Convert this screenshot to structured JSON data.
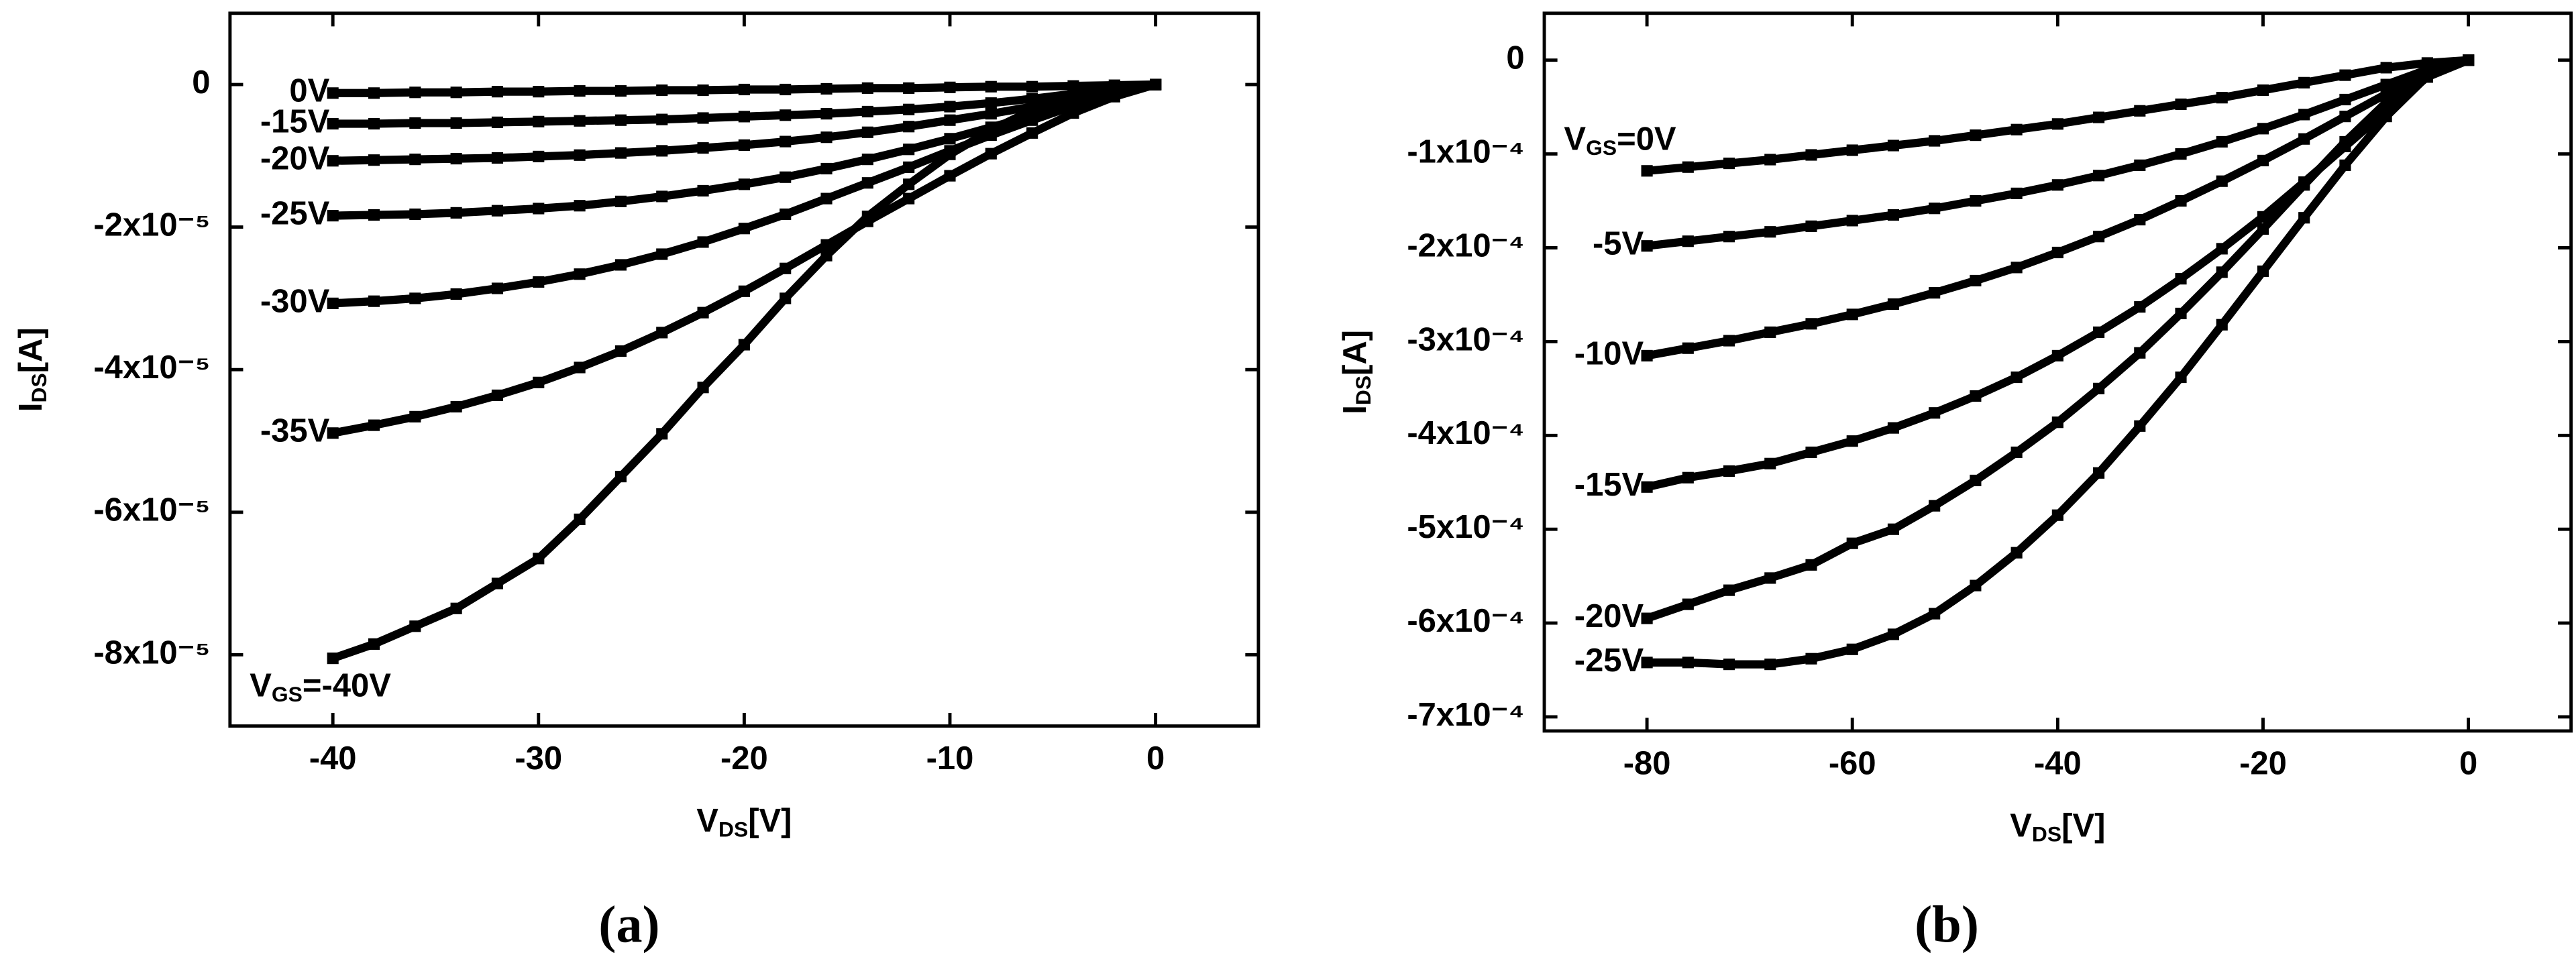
{
  "chart_data": [
    {
      "type": "line",
      "color": "#000000",
      "marker": "square",
      "x_label": {
        "main": "V",
        "sub": "DS",
        "unit": "[V]"
      },
      "y_label": {
        "main": "I",
        "sub": "DS",
        "unit": "[A]"
      },
      "caption": "(a)",
      "xlim": [
        -45,
        5
      ],
      "xticks": [
        -40,
        -30,
        -20,
        -10,
        0
      ],
      "ylim": [
        -9e-05,
        1e-05
      ],
      "yticks": [
        0,
        {
          "value": -2e-05,
          "label": "-2x10⁻⁵"
        },
        {
          "value": -4e-05,
          "label": "-4x10⁻⁵"
        },
        {
          "value": -6e-05,
          "label": "-6x10⁻⁵"
        },
        {
          "value": -8e-05,
          "label": "-8x10⁻⁵"
        }
      ],
      "x": [
        -40,
        -38,
        -36,
        -34,
        -32,
        -30,
        -28,
        -26,
        -24,
        -22,
        -20,
        -18,
        -16,
        -14,
        -12,
        -10,
        -8,
        -6,
        -4,
        -2,
        0
      ],
      "series": [
        {
          "name": "0V",
          "values": [
            -1.2e-06,
            -1.2e-06,
            -1.1e-06,
            -1.1e-06,
            -1e-06,
            -1e-06,
            -9e-07,
            -9e-07,
            -8e-07,
            -8e-07,
            -7e-07,
            -7e-07,
            -6e-07,
            -5e-07,
            -5e-07,
            -4e-07,
            -3e-07,
            -3e-07,
            -2e-07,
            -1e-07,
            0
          ]
        },
        {
          "name": "-15V",
          "values": [
            -5.5e-06,
            -5.5e-06,
            -5.4e-06,
            -5.4e-06,
            -5.3e-06,
            -5.2e-06,
            -5.1e-06,
            -5e-06,
            -4.9e-06,
            -4.7e-06,
            -4.5e-06,
            -4.3e-06,
            -4.1e-06,
            -3.8e-06,
            -3.5e-06,
            -3.1e-06,
            -2.6e-06,
            -2e-06,
            -1.3e-06,
            -6e-07,
            0
          ]
        },
        {
          "name": "-20V",
          "values": [
            -1.07e-05,
            -1.06e-05,
            -1.05e-05,
            -1.04e-05,
            -1.03e-05,
            -1.01e-05,
            -9.9e-06,
            -9.6e-06,
            -9.3e-06,
            -8.9e-06,
            -8.5e-06,
            -8e-06,
            -7.4e-06,
            -6.7e-06,
            -5.9e-06,
            -5e-06,
            -4.1e-06,
            -3.1e-06,
            -2e-06,
            -9e-07,
            0
          ]
        },
        {
          "name": "-25V",
          "values": [
            -1.84e-05,
            -1.83e-05,
            -1.82e-05,
            -1.8e-05,
            -1.77e-05,
            -1.74e-05,
            -1.7e-05,
            -1.64e-05,
            -1.57e-05,
            -1.49e-05,
            -1.4e-05,
            -1.3e-05,
            -1.18e-05,
            -1.05e-05,
            -9.1e-06,
            -7.6e-06,
            -6e-06,
            -4.4e-06,
            -2.8e-06,
            -1.2e-06,
            0
          ]
        },
        {
          "name": "-30V",
          "values": [
            -3.07e-05,
            -3.04e-05,
            -3e-05,
            -2.94e-05,
            -2.86e-05,
            -2.77e-05,
            -2.66e-05,
            -2.53e-05,
            -2.38e-05,
            -2.21e-05,
            -2.02e-05,
            -1.82e-05,
            -1.6e-05,
            -1.38e-05,
            -1.16e-05,
            -9.3e-06,
            -7.1e-06,
            -5e-06,
            -3e-06,
            -1.3e-06,
            0
          ]
        },
        {
          "name": "-35V",
          "values": [
            -4.89e-05,
            -4.78e-05,
            -4.66e-05,
            -4.52e-05,
            -4.36e-05,
            -4.18e-05,
            -3.97e-05,
            -3.74e-05,
            -3.48e-05,
            -3.2e-05,
            -2.9e-05,
            -2.58e-05,
            -2.25e-05,
            -1.92e-05,
            -1.6e-05,
            -1.28e-05,
            -9.7e-06,
            -6.8e-06,
            -4e-06,
            -1.7e-06,
            0
          ]
        },
        {
          "name": "-40V",
          "prefix": {
            "main": "V",
            "sub": "GS",
            "rel": "="
          },
          "values": [
            -8.05e-05,
            -7.85e-05,
            -7.6e-05,
            -7.35e-05,
            -7e-05,
            -6.65e-05,
            -6.1e-05,
            -5.5e-05,
            -4.9e-05,
            -4.25e-05,
            -3.65e-05,
            -3e-05,
            -2.4e-05,
            -1.85e-05,
            -1.4e-05,
            -9.8e-06,
            -6.4e-06,
            -3.6e-06,
            -1.6e-06,
            -5e-07,
            0
          ]
        }
      ]
    },
    {
      "type": "line",
      "color": "#000000",
      "marker": "square",
      "x_label": {
        "main": "V",
        "sub": "DS",
        "unit": "[V]"
      },
      "y_label": {
        "main": "I",
        "sub": "DS",
        "unit": "[A]"
      },
      "caption": "(b)",
      "xlim": [
        -90,
        10
      ],
      "xticks": [
        -80,
        -60,
        -40,
        -20,
        0
      ],
      "ylim": [
        -0.000715,
        5e-05
      ],
      "yticks": [
        0,
        {
          "value": -0.0001,
          "label": "-1x10⁻⁴"
        },
        {
          "value": -0.0002,
          "label": "-2x10⁻⁴"
        },
        {
          "value": -0.0003,
          "label": "-3x10⁻⁴"
        },
        {
          "value": -0.0004,
          "label": "-4x10⁻⁴"
        },
        {
          "value": -0.0005,
          "label": "-5x10⁻⁴"
        },
        {
          "value": -0.0006,
          "label": "-6x10⁻⁴"
        },
        {
          "value": -0.0007,
          "label": "-7x10⁻⁴"
        }
      ],
      "x": [
        -80,
        -76,
        -72,
        -68,
        -64,
        -60,
        -56,
        -52,
        -48,
        -44,
        -40,
        -36,
        -32,
        -28,
        -24,
        -20,
        -16,
        -12,
        -8,
        -4,
        0
      ],
      "series": [
        {
          "name": "0V",
          "prefix": {
            "main": "V",
            "sub": "GS",
            "rel": "="
          },
          "values": [
            -0.000118,
            -0.000114,
            -0.00011,
            -0.000106,
            -0.000101,
            -9.6e-05,
            -9.1e-05,
            -8.6e-05,
            -8e-05,
            -7.4e-05,
            -6.8e-05,
            -6.1e-05,
            -5.4e-05,
            -4.7e-05,
            -4e-05,
            -3.2e-05,
            -2.4e-05,
            -1.6e-05,
            -8e-06,
            -3e-06,
            0
          ]
        },
        {
          "name": "-5V",
          "values": [
            -0.000198,
            -0.000193,
            -0.000188,
            -0.000183,
            -0.000177,
            -0.000171,
            -0.000165,
            -0.000158,
            -0.00015,
            -0.000142,
            -0.000133,
            -0.000123,
            -0.000112,
            -0.0001,
            -8.7e-05,
            -7.3e-05,
            -5.8e-05,
            -4.2e-05,
            -2.6e-05,
            -1e-05,
            0
          ]
        },
        {
          "name": "-10V",
          "values": [
            -0.000315,
            -0.000307,
            -0.000299,
            -0.00029,
            -0.000281,
            -0.000271,
            -0.00026,
            -0.000248,
            -0.000235,
            -0.000221,
            -0.000205,
            -0.000188,
            -0.00017,
            -0.00015,
            -0.000129,
            -0.000107,
            -8.4e-05,
            -6e-05,
            -3.6e-05,
            -1.3e-05,
            0
          ]
        },
        {
          "name": "-15V",
          "values": [
            -0.000455,
            -0.000445,
            -0.000438,
            -0.00043,
            -0.000418,
            -0.000406,
            -0.000392,
            -0.000376,
            -0.000358,
            -0.000338,
            -0.000315,
            -0.00029,
            -0.000263,
            -0.000233,
            -0.000201,
            -0.000167,
            -0.00013,
            -9.2e-05,
            -5.4e-05,
            -1.8e-05,
            0
          ]
        },
        {
          "name": "-20V",
          "values": [
            -0.000595,
            -0.00058,
            -0.000565,
            -0.000552,
            -0.000538,
            -0.000515,
            -0.0005,
            -0.000475,
            -0.000448,
            -0.000418,
            -0.000386,
            -0.00035,
            -0.000312,
            -0.00027,
            -0.000226,
            -0.00018,
            -0.000133,
            -8.7e-05,
            -4.5e-05,
            -1.2e-05,
            0
          ]
        },
        {
          "name": "-25V",
          "values": [
            -0.000642,
            -0.000642,
            -0.000644,
            -0.000644,
            -0.000638,
            -0.000628,
            -0.000612,
            -0.00059,
            -0.00056,
            -0.000525,
            -0.000485,
            -0.00044,
            -0.00039,
            -0.000338,
            -0.000282,
            -0.000225,
            -0.000168,
            -0.000112,
            -6e-05,
            -1.7e-05,
            0
          ]
        }
      ]
    }
  ]
}
